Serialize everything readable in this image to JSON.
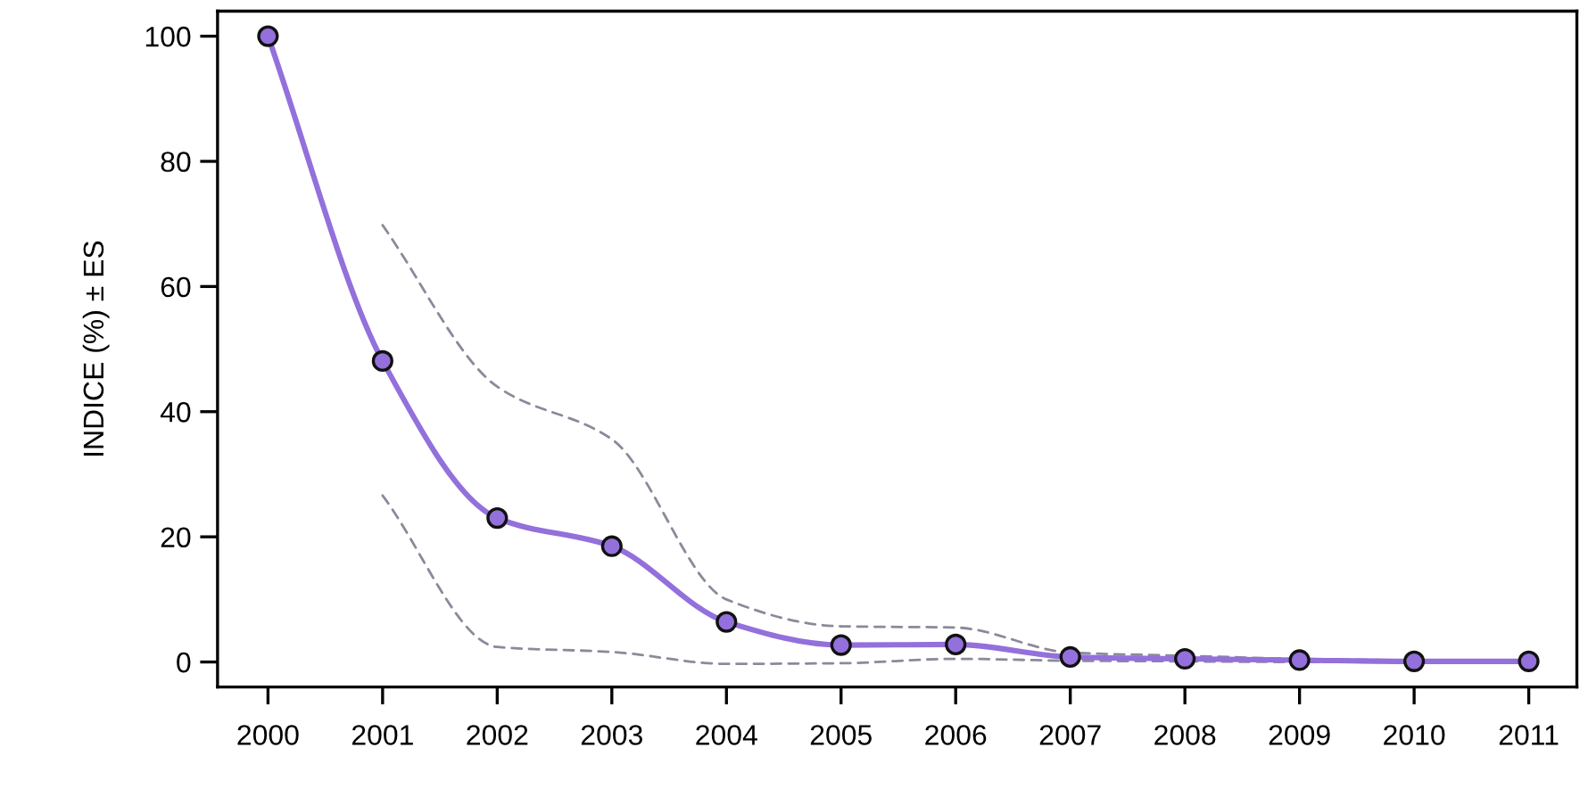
{
  "chart_data": {
    "type": "line",
    "ylabel": "INDICE (%) ± ES",
    "x": [
      2000,
      2001,
      2002,
      2003,
      2004,
      2005,
      2006,
      2007,
      2008,
      2009,
      2010,
      2011
    ],
    "series": [
      {
        "color": "#9370db",
        "marker": "circle",
        "line_style": "solid",
        "values": [
          100,
          48.1,
          23.0,
          18.5,
          6.4,
          2.7,
          2.8,
          0.8,
          0.5,
          0.3,
          0.1,
          0.1
        ]
      },
      {
        "color": "#8a8a9a",
        "marker": "none",
        "line_style": "dashed",
        "x": [
          2001,
          2002,
          2003,
          2004,
          2005,
          2006,
          2007,
          2008,
          2009,
          2010,
          2011
        ],
        "values": [
          69.8,
          44.0,
          35.6,
          10.0,
          5.7,
          5.5,
          1.5,
          1.0,
          0.5,
          0.3,
          0.3
        ]
      },
      {
        "color": "#8a8a9a",
        "marker": "none",
        "line_style": "dashed",
        "x": [
          2001,
          2002,
          2003,
          2004,
          2005,
          2006,
          2007,
          2008,
          2009,
          2010,
          2011
        ],
        "values": [
          26.6,
          2.4,
          1.6,
          -0.3,
          -0.2,
          0.5,
          0.2,
          0.1,
          0.0,
          0.0,
          0.0
        ]
      }
    ],
    "xlim": [
      1999.56,
      2011.42
    ],
    "ylim": [
      -4,
      104
    ],
    "xticks": [
      2000,
      2001,
      2002,
      2003,
      2004,
      2005,
      2006,
      2007,
      2008,
      2009,
      2010,
      2011
    ],
    "yticks": [
      0,
      20,
      40,
      60,
      80,
      100
    ],
    "grid": false,
    "legend": false
  }
}
